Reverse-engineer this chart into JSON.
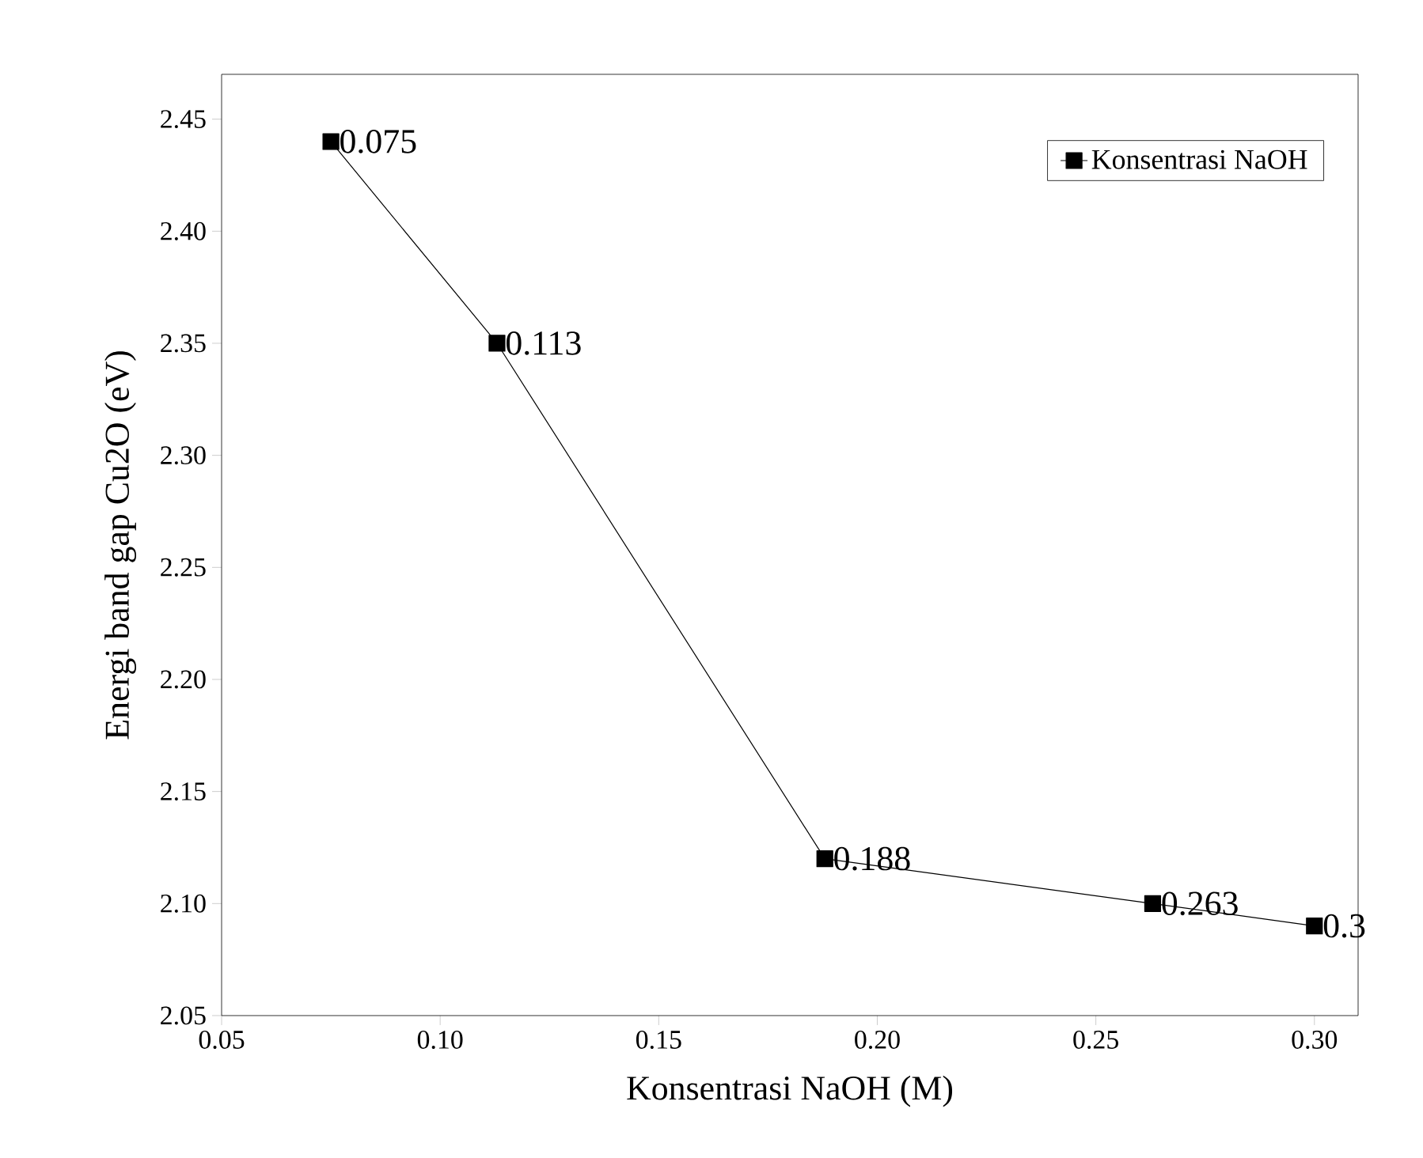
{
  "chart_data": {
    "type": "line",
    "xlabel": "Konsentrasi NaOH (M)",
    "ylabel": "Energi band gap Cu2O (eV)",
    "x": [
      0.075,
      0.113,
      0.188,
      0.263,
      0.3
    ],
    "series": [
      {
        "name": "Konsentrasi NaOH",
        "color": "#000000",
        "values": [
          2.44,
          2.35,
          2.12,
          2.1,
          2.09
        ]
      }
    ],
    "annotations": [
      {
        "text": "0.075",
        "x": 0.075,
        "y": 2.44
      },
      {
        "text": "0.113",
        "x": 0.113,
        "y": 2.35
      },
      {
        "text": "0.188",
        "x": 0.188,
        "y": 2.12
      },
      {
        "text": "0.263",
        "x": 0.263,
        "y": 2.1
      },
      {
        "text": "0.3",
        "x": 0.3,
        "y": 2.09
      }
    ],
    "xlim": [
      0.05,
      0.31
    ],
    "ylim": [
      2.05,
      2.47
    ],
    "xticks": [
      {
        "value": 0.05,
        "label": "0.05"
      },
      {
        "value": 0.1,
        "label": "0.10"
      },
      {
        "value": 0.15,
        "label": "0.15"
      },
      {
        "value": 0.2,
        "label": "0.20"
      },
      {
        "value": 0.25,
        "label": "0.25"
      },
      {
        "value": 0.3,
        "label": "0.30"
      }
    ],
    "yticks": [
      {
        "value": 2.05,
        "label": "2.05"
      },
      {
        "value": 2.1,
        "label": "2.10"
      },
      {
        "value": 2.15,
        "label": "2.15"
      },
      {
        "value": 2.2,
        "label": "2.20"
      },
      {
        "value": 2.25,
        "label": "2.25"
      },
      {
        "value": 2.3,
        "label": "2.30"
      },
      {
        "value": 2.35,
        "label": "2.35"
      },
      {
        "value": 2.4,
        "label": "2.40"
      },
      {
        "value": 2.45,
        "label": "2.45"
      }
    ],
    "grid": false,
    "legend": "top right",
    "marker": "square",
    "line_style": "solid"
  }
}
